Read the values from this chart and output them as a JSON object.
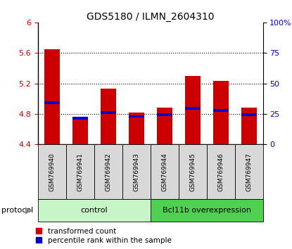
{
  "title": "GDS5180 / ILMN_2604310",
  "samples": [
    "GSM769940",
    "GSM769941",
    "GSM769942",
    "GSM769943",
    "GSM769944",
    "GSM769945",
    "GSM769946",
    "GSM769947"
  ],
  "red_top": [
    5.65,
    4.73,
    5.13,
    4.82,
    4.88,
    5.3,
    5.23,
    4.88
  ],
  "blue_top": [
    4.93,
    4.73,
    4.8,
    4.75,
    4.77,
    4.855,
    4.83,
    4.77
  ],
  "blue_height": [
    0.035,
    0.035,
    0.035,
    0.035,
    0.035,
    0.035,
    0.035,
    0.035
  ],
  "baseline": 4.4,
  "ylim_left": [
    4.4,
    6.0
  ],
  "ylim_right": [
    0,
    100
  ],
  "yticks_left": [
    4.4,
    4.8,
    5.2,
    5.6,
    6.0
  ],
  "ytick_labels_left": [
    "4.4",
    "4.8",
    "5.2",
    "5.6",
    "6"
  ],
  "yticks_right": [
    0,
    25,
    50,
    75,
    100
  ],
  "ytick_labels_right": [
    "0",
    "25",
    "50",
    "75",
    "100%"
  ],
  "control_samples": 4,
  "protocol_control_label": "control",
  "protocol_bcl_label": "Bcl11b overexpression",
  "control_color": "#c8f5c8",
  "bcl_color": "#50d050",
  "bar_width": 0.55,
  "red_color": "#cc0000",
  "blue_color": "#0000cc",
  "label_bg_color": "#d8d8d8",
  "legend_red_label": "transformed count",
  "legend_blue_label": "percentile rank within the sample",
  "grid_yticks": [
    4.8,
    5.2,
    5.6
  ]
}
